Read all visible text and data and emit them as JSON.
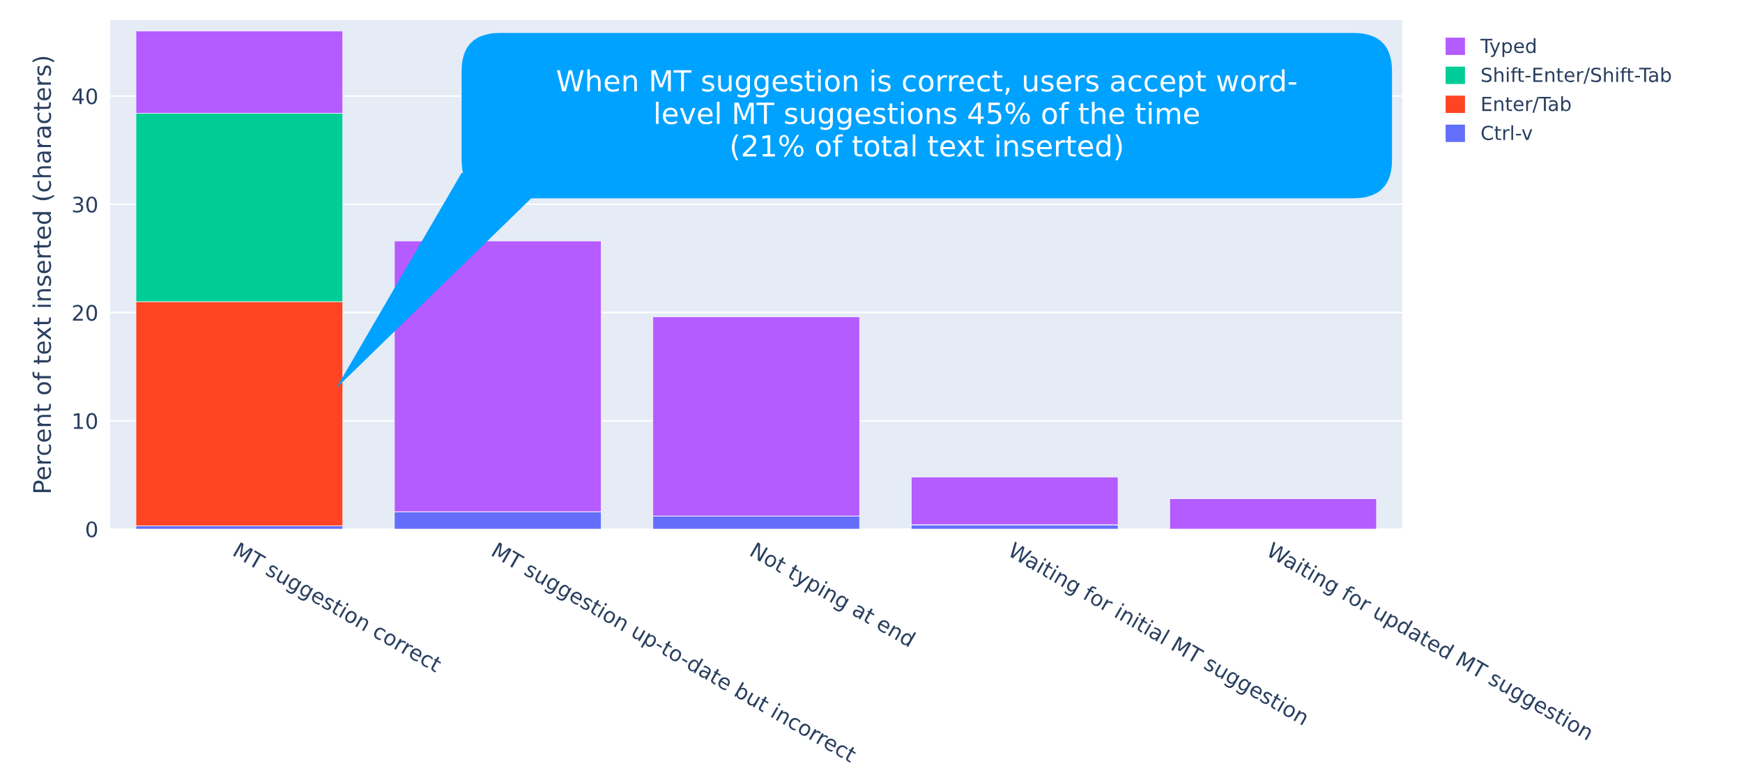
{
  "chart_data": {
    "type": "bar",
    "stacked": true,
    "ylabel": "Percent of text inserted (characters)",
    "categories": [
      "MT suggestion correct",
      "MT suggestion up-to-date but incorrect",
      "Not typing at end",
      "Waiting for initial MT suggestion",
      "Waiting for updated MT suggestion"
    ],
    "series": [
      {
        "name": "Ctrl-v",
        "color": "#636efa",
        "values": [
          0.3,
          1.6,
          1.2,
          0.4,
          0
        ]
      },
      {
        "name": "Enter/Tab",
        "color": "#ff4424",
        "values": [
          20.7,
          0,
          0,
          0,
          0
        ]
      },
      {
        "name": "Shift-Enter/Shift-Tab",
        "color": "#00cc96",
        "values": [
          17.4,
          0,
          0,
          0,
          0
        ]
      },
      {
        "name": "Typed",
        "color": "#b45cff",
        "values": [
          7.6,
          25.0,
          18.4,
          4.4,
          2.8
        ]
      }
    ],
    "ylim": [
      0,
      47
    ],
    "yticks": [
      0,
      10,
      20,
      30,
      40
    ],
    "grid": "y",
    "legend": "top right",
    "annotations": [
      "When MT suggestion is correct, users accept word-\nlevel MT suggestions 45% of the time\n(21% of total text inserted)"
    ]
  }
}
